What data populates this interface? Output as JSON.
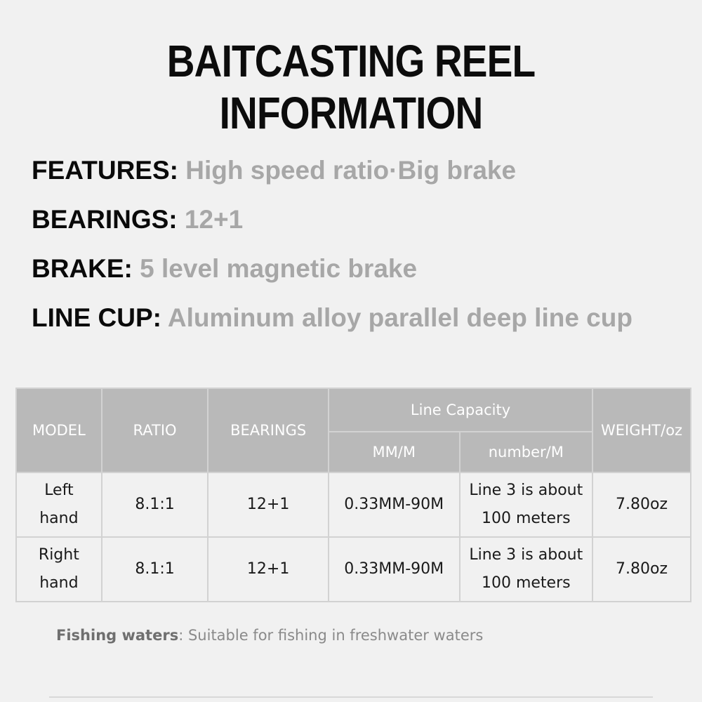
{
  "title": "BAITCASTING REEL INFORMATION",
  "features": [
    {
      "key": "FEATURES:",
      "value": "High speed ratio·Big brake"
    },
    {
      "key": "BEARINGS:",
      "value": "12+1"
    },
    {
      "key": "BRAKE:",
      "value": "5 level magnetic brake"
    },
    {
      "key": "LINE CUP:",
      "value": "Aluminum alloy parallel deep line cup"
    }
  ],
  "table": {
    "headers": {
      "model": "MODEL",
      "ratio": "RATIO",
      "bearings": "BEARINGS",
      "line_capacity": "Line Capacity",
      "mm_m": "MM/M",
      "number_m": "number/M",
      "weight": "WEIGHT/oz"
    },
    "rows": [
      {
        "model_1": "Left",
        "model_2": "hand",
        "ratio": "8.1:1",
        "bearings": "12+1",
        "mm_m": "0.33MM-90M",
        "number_1": "Line 3 is about",
        "number_2": "100 meters",
        "weight": "7.80oz"
      },
      {
        "model_1": "Right",
        "model_2": "hand",
        "ratio": "8.1:1",
        "bearings": "12+1",
        "mm_m": "0.33MM-90M",
        "number_1": "Line 3 is about",
        "number_2": "100 meters",
        "weight": "7.80oz"
      }
    ]
  },
  "footer": {
    "label": "Fishing waters",
    "separator": ":",
    "text": "Suitable for fishing in freshwater waters"
  }
}
